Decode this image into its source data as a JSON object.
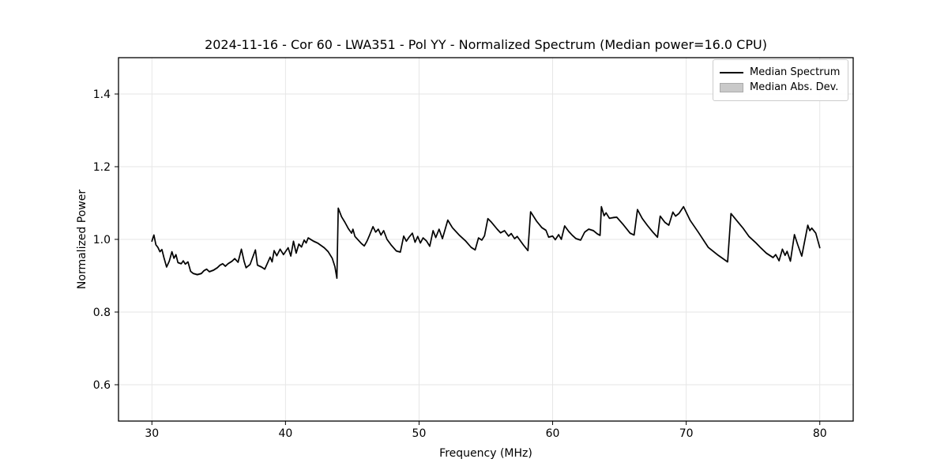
{
  "title": "2024-11-16 - Cor 60 - LWA351 - Pol YY - Normalized Spectrum (Median power=16.0 CPU)",
  "axes": {
    "xlabel": "Frequency (MHz)",
    "ylabel": "Normalized Power"
  },
  "legend": {
    "items": [
      {
        "label": "Median Spectrum",
        "type": "line",
        "color": "#000000"
      },
      {
        "label": "Median Abs. Dev.",
        "type": "patch",
        "color": "#c9c9c9"
      }
    ]
  },
  "colors": {
    "line": "#000000",
    "band": "#c9c9c9",
    "grid": "#e6e6e6",
    "spine": "#000000",
    "tick": "#000000",
    "background": "#ffffff"
  },
  "chart_data": {
    "type": "line",
    "title": "2024-11-16 - Cor 60 - LWA351 - Pol YY - Normalized Spectrum (Median power=16.0 CPU)",
    "xlabel": "Frequency (MHz)",
    "ylabel": "Normalized Power",
    "xlim": [
      27.5,
      82.5
    ],
    "ylim": [
      0.5,
      1.5
    ],
    "x_ticks": [
      30,
      40,
      50,
      60,
      70,
      80
    ],
    "x_tick_labels": [
      "30",
      "40",
      "50",
      "60",
      "70",
      "80"
    ],
    "y_ticks": [
      0.6,
      0.8,
      1.0,
      1.2,
      1.4
    ],
    "y_tick_labels": [
      "0.6",
      "0.8",
      "1.0",
      "1.2",
      "1.4"
    ],
    "grid": true,
    "legend_position": "upper right",
    "series": [
      {
        "name": "Median Spectrum",
        "type": "line",
        "color": "#000000",
        "points": [
          [
            30.0,
            0.995
          ],
          [
            30.15,
            1.012
          ],
          [
            30.3,
            0.985
          ],
          [
            30.45,
            0.978
          ],
          [
            30.6,
            0.966
          ],
          [
            30.75,
            0.972
          ],
          [
            30.9,
            0.95
          ],
          [
            31.1,
            0.924
          ],
          [
            31.3,
            0.94
          ],
          [
            31.5,
            0.966
          ],
          [
            31.65,
            0.948
          ],
          [
            31.8,
            0.958
          ],
          [
            31.95,
            0.936
          ],
          [
            32.2,
            0.933
          ],
          [
            32.35,
            0.941
          ],
          [
            32.5,
            0.932
          ],
          [
            32.7,
            0.938
          ],
          [
            32.9,
            0.912
          ],
          [
            33.1,
            0.906
          ],
          [
            33.4,
            0.903
          ],
          [
            33.7,
            0.906
          ],
          [
            33.9,
            0.914
          ],
          [
            34.1,
            0.918
          ],
          [
            34.3,
            0.911
          ],
          [
            34.6,
            0.915
          ],
          [
            34.9,
            0.922
          ],
          [
            35.1,
            0.929
          ],
          [
            35.3,
            0.933
          ],
          [
            35.5,
            0.926
          ],
          [
            35.7,
            0.933
          ],
          [
            36.0,
            0.94
          ],
          [
            36.2,
            0.947
          ],
          [
            36.45,
            0.937
          ],
          [
            36.7,
            0.973
          ],
          [
            36.9,
            0.94
          ],
          [
            37.05,
            0.922
          ],
          [
            37.35,
            0.931
          ],
          [
            37.75,
            0.971
          ],
          [
            37.9,
            0.929
          ],
          [
            38.2,
            0.924
          ],
          [
            38.45,
            0.918
          ],
          [
            38.85,
            0.951
          ],
          [
            39.0,
            0.938
          ],
          [
            39.15,
            0.969
          ],
          [
            39.35,
            0.955
          ],
          [
            39.6,
            0.973
          ],
          [
            39.85,
            0.958
          ],
          [
            40.2,
            0.977
          ],
          [
            40.4,
            0.954
          ],
          [
            40.6,
            0.995
          ],
          [
            40.8,
            0.962
          ],
          [
            41.0,
            0.987
          ],
          [
            41.2,
            0.979
          ],
          [
            41.4,
            0.998
          ],
          [
            41.55,
            0.99
          ],
          [
            41.7,
            1.004
          ],
          [
            42.1,
            0.995
          ],
          [
            42.4,
            0.99
          ],
          [
            42.9,
            0.977
          ],
          [
            43.2,
            0.966
          ],
          [
            43.5,
            0.948
          ],
          [
            43.7,
            0.925
          ],
          [
            43.85,
            0.893
          ],
          [
            43.95,
            1.086
          ],
          [
            44.2,
            1.062
          ],
          [
            44.45,
            1.047
          ],
          [
            44.7,
            1.03
          ],
          [
            44.95,
            1.017
          ],
          [
            45.05,
            1.028
          ],
          [
            45.2,
            1.008
          ],
          [
            45.45,
            0.998
          ],
          [
            45.7,
            0.988
          ],
          [
            45.9,
            0.982
          ],
          [
            46.1,
            0.995
          ],
          [
            46.3,
            1.012
          ],
          [
            46.55,
            1.035
          ],
          [
            46.75,
            1.02
          ],
          [
            46.95,
            1.028
          ],
          [
            47.15,
            1.012
          ],
          [
            47.35,
            1.024
          ],
          [
            47.6,
            1.0
          ],
          [
            47.9,
            0.985
          ],
          [
            48.3,
            0.968
          ],
          [
            48.6,
            0.965
          ],
          [
            48.85,
            1.009
          ],
          [
            49.05,
            0.995
          ],
          [
            49.25,
            1.006
          ],
          [
            49.5,
            1.017
          ],
          [
            49.7,
            0.992
          ],
          [
            49.9,
            1.008
          ],
          [
            50.1,
            0.99
          ],
          [
            50.3,
            1.004
          ],
          [
            50.55,
            0.996
          ],
          [
            50.8,
            0.981
          ],
          [
            51.05,
            1.024
          ],
          [
            51.25,
            1.005
          ],
          [
            51.5,
            1.028
          ],
          [
            51.75,
            1.002
          ],
          [
            52.15,
            1.053
          ],
          [
            52.5,
            1.032
          ],
          [
            53.0,
            1.012
          ],
          [
            53.5,
            0.995
          ],
          [
            53.9,
            0.978
          ],
          [
            54.2,
            0.971
          ],
          [
            54.45,
            1.004
          ],
          [
            54.7,
            0.998
          ],
          [
            54.9,
            1.01
          ],
          [
            55.15,
            1.057
          ],
          [
            55.4,
            1.048
          ],
          [
            55.85,
            1.028
          ],
          [
            56.1,
            1.018
          ],
          [
            56.4,
            1.024
          ],
          [
            56.7,
            1.009
          ],
          [
            56.9,
            1.016
          ],
          [
            57.15,
            1.002
          ],
          [
            57.35,
            1.008
          ],
          [
            57.8,
            0.985
          ],
          [
            58.15,
            0.969
          ],
          [
            58.35,
            1.076
          ],
          [
            58.8,
            1.05
          ],
          [
            59.2,
            1.032
          ],
          [
            59.5,
            1.025
          ],
          [
            59.7,
            1.006
          ],
          [
            60.0,
            1.009
          ],
          [
            60.2,
            0.999
          ],
          [
            60.45,
            1.013
          ],
          [
            60.65,
            1.0
          ],
          [
            60.9,
            1.037
          ],
          [
            61.2,
            1.022
          ],
          [
            61.45,
            1.012
          ],
          [
            61.75,
            1.002
          ],
          [
            62.1,
            0.998
          ],
          [
            62.4,
            1.02
          ],
          [
            62.7,
            1.028
          ],
          [
            63.05,
            1.024
          ],
          [
            63.35,
            1.015
          ],
          [
            63.55,
            1.011
          ],
          [
            63.65,
            1.09
          ],
          [
            63.85,
            1.065
          ],
          [
            64.0,
            1.073
          ],
          [
            64.25,
            1.058
          ],
          [
            64.55,
            1.06
          ],
          [
            64.8,
            1.061
          ],
          [
            65.3,
            1.04
          ],
          [
            65.8,
            1.017
          ],
          [
            66.1,
            1.012
          ],
          [
            66.35,
            1.082
          ],
          [
            66.7,
            1.058
          ],
          [
            67.1,
            1.038
          ],
          [
            67.5,
            1.02
          ],
          [
            67.85,
            1.006
          ],
          [
            68.05,
            1.064
          ],
          [
            68.4,
            1.047
          ],
          [
            68.7,
            1.039
          ],
          [
            69.0,
            1.075
          ],
          [
            69.2,
            1.064
          ],
          [
            69.45,
            1.071
          ],
          [
            69.8,
            1.09
          ],
          [
            70.3,
            1.052
          ],
          [
            70.9,
            1.02
          ],
          [
            71.65,
            0.978
          ],
          [
            72.4,
            0.956
          ],
          [
            73.1,
            0.938
          ],
          [
            73.35,
            1.071
          ],
          [
            74.0,
            1.042
          ],
          [
            74.25,
            1.031
          ],
          [
            74.7,
            1.008
          ],
          [
            75.2,
            0.991
          ],
          [
            75.6,
            0.976
          ],
          [
            76.0,
            0.962
          ],
          [
            76.5,
            0.95
          ],
          [
            76.7,
            0.958
          ],
          [
            76.95,
            0.941
          ],
          [
            77.2,
            0.973
          ],
          [
            77.4,
            0.956
          ],
          [
            77.55,
            0.967
          ],
          [
            77.8,
            0.94
          ],
          [
            78.1,
            1.013
          ],
          [
            78.35,
            0.985
          ],
          [
            78.65,
            0.954
          ],
          [
            79.1,
            1.039
          ],
          [
            79.25,
            1.024
          ],
          [
            79.4,
            1.031
          ],
          [
            79.7,
            1.017
          ],
          [
            80.0,
            0.977
          ]
        ]
      },
      {
        "name": "Median Abs. Dev.",
        "type": "band",
        "color": "#c9c9c9",
        "halfwidth": 0.003
      }
    ]
  }
}
